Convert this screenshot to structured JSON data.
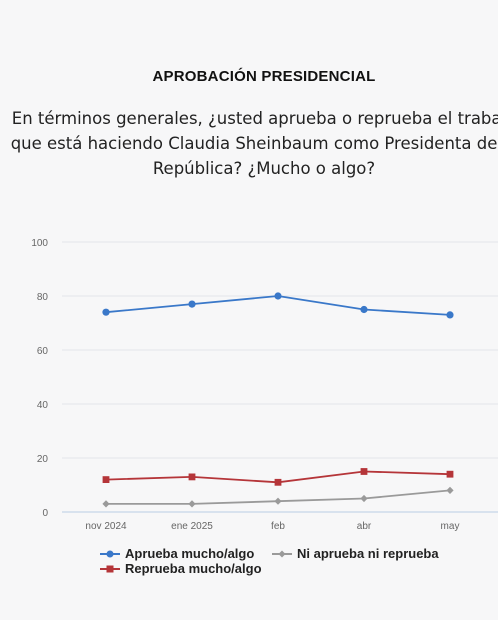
{
  "header": {
    "title": "APROBACIÓN PRESIDENCIAL",
    "question_lines": [
      "En términos generales, ¿usted aprueba o reprueba el trabajo",
      "que está haciendo Claudia Sheinbaum como Presidenta de la",
      "República? ¿Mucho o algo?"
    ]
  },
  "chart_data": {
    "type": "line",
    "categories": [
      "nov 2024",
      "ene 2025",
      "feb",
      "abr",
      "may"
    ],
    "ylim": [
      0,
      100
    ],
    "yticks": [
      0,
      20,
      40,
      60,
      80,
      100
    ],
    "grid": true,
    "legend_position": "bottom",
    "series": [
      {
        "name": "Aprueba mucho/algo",
        "values": [
          74,
          77,
          80,
          75,
          73
        ],
        "color": "#3a78c9",
        "marker": "circle"
      },
      {
        "name": "Reprueba mucho/algo",
        "values": [
          12,
          13,
          11,
          15,
          14
        ],
        "color": "#b53539",
        "marker": "square"
      },
      {
        "name": "Ni aprueba ni reprueba",
        "values": [
          3,
          3,
          4,
          5,
          8
        ],
        "color": "#9a9a9a",
        "marker": "diamond"
      }
    ]
  }
}
